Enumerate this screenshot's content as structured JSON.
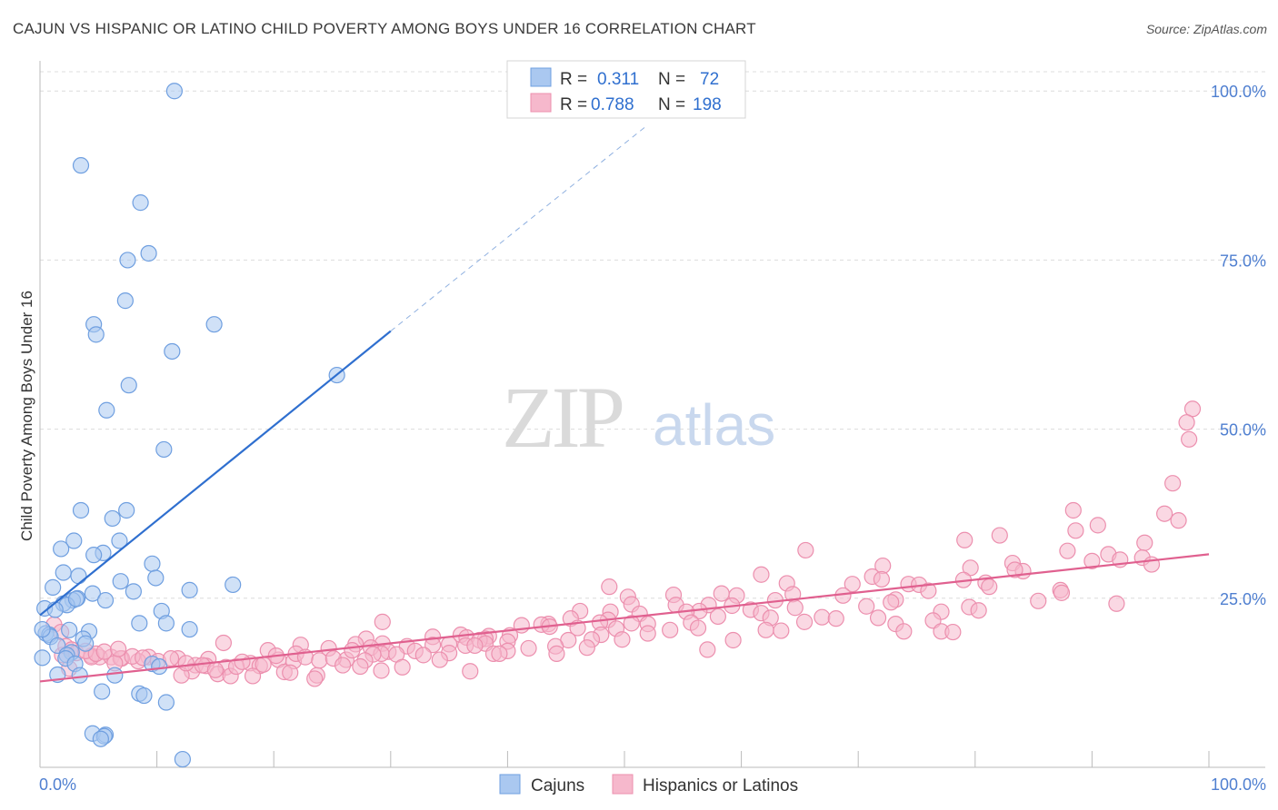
{
  "title": "CAJUN VS HISPANIC OR LATINO CHILD POVERTY AMONG BOYS UNDER 16 CORRELATION CHART",
  "source": "Source: ZipAtlas.com",
  "watermark": {
    "zip": "ZIP",
    "atlas": "atlas"
  },
  "chart_data": {
    "type": "scatter",
    "title": "CAJUN VS HISPANIC OR LATINO CHILD POVERTY AMONG BOYS UNDER 16 CORRELATION CHART",
    "xlabel": "",
    "ylabel": "Child Poverty Among Boys Under 16",
    "xlim": [
      0,
      100
    ],
    "ylim": [
      0,
      105
    ],
    "x_tick_labels": [
      "0.0%",
      "100.0%"
    ],
    "y_ticks": [
      25,
      50,
      75,
      100
    ],
    "y_tick_labels": [
      "25.0%",
      "50.0%",
      "75.0%",
      "100.0%"
    ],
    "grid": true,
    "legend_position": "top-center",
    "colors": {
      "cajun_fill": "#aac8f0",
      "cajun_stroke": "#6f9fe0",
      "cajun_line": "#2f6fcf",
      "hisp_fill": "#f6b8cc",
      "hisp_stroke": "#ec8fae",
      "hisp_line": "#e0608f"
    },
    "stats": [
      {
        "r_label": "R =",
        "r_value": "0.311",
        "n_label": "N =",
        "n_value": "72"
      },
      {
        "r_label": "R =",
        "r_value": "0.788",
        "n_label": "N =",
        "n_value": "198"
      }
    ],
    "series": [
      {
        "name": "Cajuns",
        "trend": {
          "x0": 0,
          "y0": 22.5,
          "x1": 30,
          "y1": 64.5,
          "dash_x_end": 52,
          "dash_y_end": 95
        },
        "points": [
          [
            11.5,
            100
          ],
          [
            3.5,
            89
          ],
          [
            8.6,
            83.5
          ],
          [
            9.3,
            76
          ],
          [
            7.5,
            75
          ],
          [
            7.3,
            69
          ],
          [
            4.6,
            65.5
          ],
          [
            14.9,
            65.5
          ],
          [
            4.8,
            64
          ],
          [
            11.3,
            61.5
          ],
          [
            25.4,
            58
          ],
          [
            7.6,
            56.5
          ],
          [
            5.7,
            52.8
          ],
          [
            10.6,
            47
          ],
          [
            3.5,
            38
          ],
          [
            7.4,
            38
          ],
          [
            6.2,
            36.8
          ],
          [
            6.8,
            33.5
          ],
          [
            2.9,
            33.5
          ],
          [
            1.8,
            32.3
          ],
          [
            5.4,
            31.7
          ],
          [
            4.6,
            31.4
          ],
          [
            9.6,
            30.1
          ],
          [
            2.0,
            28.8
          ],
          [
            3.3,
            28.3
          ],
          [
            9.9,
            28
          ],
          [
            6.9,
            27.5
          ],
          [
            16.5,
            27
          ],
          [
            1.1,
            26.6
          ],
          [
            8.0,
            26
          ],
          [
            12.8,
            26.2
          ],
          [
            4.5,
            25.7
          ],
          [
            3.2,
            25
          ],
          [
            2.8,
            24.7
          ],
          [
            5.6,
            24.7
          ],
          [
            2.0,
            24.2
          ],
          [
            2.3,
            24
          ],
          [
            10.4,
            23.1
          ],
          [
            0.4,
            23.5
          ],
          [
            1.3,
            23.3
          ],
          [
            8.5,
            21.3
          ],
          [
            10.8,
            21.3
          ],
          [
            12.8,
            20.4
          ],
          [
            2.5,
            20.3
          ],
          [
            4.2,
            20.1
          ],
          [
            0.5,
            19.8
          ],
          [
            0.8,
            19.6
          ],
          [
            0.9,
            19.3
          ],
          [
            3.7,
            19
          ],
          [
            3.9,
            18.3
          ],
          [
            1.5,
            18
          ],
          [
            2.7,
            17
          ],
          [
            2.3,
            16.6
          ],
          [
            0.2,
            16.2
          ],
          [
            2.2,
            16.1
          ],
          [
            3.0,
            15.3
          ],
          [
            9.6,
            15.3
          ],
          [
            10.2,
            14.9
          ],
          [
            1.5,
            13.7
          ],
          [
            3.4,
            13.6
          ],
          [
            6.4,
            13.6
          ],
          [
            5.3,
            11.2
          ],
          [
            8.5,
            10.9
          ],
          [
            8.9,
            10.6
          ],
          [
            10.8,
            9.6
          ],
          [
            4.5,
            5
          ],
          [
            5.6,
            4.8
          ],
          [
            5.5,
            4.6
          ],
          [
            5.2,
            4.2
          ],
          [
            12.2,
            1.2
          ],
          [
            0.2,
            20.4
          ],
          [
            3.1,
            24.9
          ]
        ]
      },
      {
        "name": "Hispanics or Latinos",
        "trend": {
          "x0": 0,
          "y0": 12.7,
          "x1": 100,
          "y1": 31.5
        },
        "points": [
          [
            98.6,
            53
          ],
          [
            98.1,
            51
          ],
          [
            98.3,
            48.5
          ],
          [
            96.9,
            42
          ],
          [
            88.4,
            38
          ],
          [
            96.2,
            37.5
          ],
          [
            97.4,
            36.5
          ],
          [
            90.5,
            35.8
          ],
          [
            88.6,
            35
          ],
          [
            82.1,
            34.3
          ],
          [
            79.1,
            33.6
          ],
          [
            94.5,
            33.2
          ],
          [
            87.9,
            32
          ],
          [
            65.5,
            32.1
          ],
          [
            91.4,
            31.5
          ],
          [
            94.3,
            31
          ],
          [
            92.4,
            30.7
          ],
          [
            90.0,
            30.5
          ],
          [
            83.2,
            30.2
          ],
          [
            95.1,
            30
          ],
          [
            72.1,
            29.8
          ],
          [
            79.6,
            29.5
          ],
          [
            84.1,
            29
          ],
          [
            83.4,
            29.2
          ],
          [
            61.7,
            28.5
          ],
          [
            71.2,
            28.2
          ],
          [
            79.0,
            27.7
          ],
          [
            80.9,
            27.3
          ],
          [
            74.3,
            27.1
          ],
          [
            75.2,
            27
          ],
          [
            72.0,
            27.8
          ],
          [
            63.9,
            27.2
          ],
          [
            69.5,
            27.1
          ],
          [
            81.2,
            26.7
          ],
          [
            48.7,
            26.7
          ],
          [
            87.3,
            26.2
          ],
          [
            76.0,
            26.1
          ],
          [
            87.4,
            25.8
          ],
          [
            64.4,
            25.6
          ],
          [
            58.3,
            25.7
          ],
          [
            54.2,
            25.5
          ],
          [
            68.7,
            25.4
          ],
          [
            59.6,
            25.4
          ],
          [
            50.3,
            25.2
          ],
          [
            73.2,
            24.8
          ],
          [
            62.9,
            24.7
          ],
          [
            85.4,
            24.6
          ],
          [
            72.8,
            24.4
          ],
          [
            92.1,
            24.2
          ],
          [
            50.6,
            24.1
          ],
          [
            57.2,
            24
          ],
          [
            54.4,
            24
          ],
          [
            59.2,
            23.9
          ],
          [
            79.5,
            23.7
          ],
          [
            70.7,
            23.8
          ],
          [
            64.6,
            23.6
          ],
          [
            60.8,
            23.3
          ],
          [
            80.3,
            23.2
          ],
          [
            56.4,
            23.1
          ],
          [
            55.3,
            23
          ],
          [
            77.1,
            23
          ],
          [
            46.2,
            23.1
          ],
          [
            61.7,
            22.8
          ],
          [
            48.8,
            23
          ],
          [
            51.3,
            22.7
          ],
          [
            58.0,
            22.3
          ],
          [
            66.9,
            22.2
          ],
          [
            62.5,
            22.1
          ],
          [
            71.7,
            22.1
          ],
          [
            68.1,
            22
          ],
          [
            45.4,
            22
          ],
          [
            48.6,
            21.8
          ],
          [
            76.4,
            21.7
          ],
          [
            65.4,
            21.5
          ],
          [
            73.2,
            21.2
          ],
          [
            55.7,
            21.4
          ],
          [
            47.9,
            21.4
          ],
          [
            50.6,
            21.3
          ],
          [
            52.0,
            21.2
          ],
          [
            43.5,
            21.2
          ],
          [
            42.9,
            21.1
          ],
          [
            41.2,
            21
          ],
          [
            29.3,
            21.5
          ],
          [
            43.6,
            20.8
          ],
          [
            46.0,
            20.6
          ],
          [
            56.3,
            20.6
          ],
          [
            49.3,
            20.5
          ],
          [
            53.9,
            20.3
          ],
          [
            62.1,
            20.3
          ],
          [
            63.4,
            20.2
          ],
          [
            73.9,
            20.1
          ],
          [
            77.1,
            20.1
          ],
          [
            78.1,
            20
          ],
          [
            52.0,
            19.8
          ],
          [
            48.0,
            19.6
          ],
          [
            36.0,
            19.6
          ],
          [
            40.2,
            19.5
          ],
          [
            38.4,
            19.4
          ],
          [
            33.6,
            19.3
          ],
          [
            36.5,
            19.2
          ],
          [
            27.9,
            19
          ],
          [
            38.1,
            19
          ],
          [
            47.2,
            18.9
          ],
          [
            49.8,
            18.9
          ],
          [
            59.3,
            18.8
          ],
          [
            37.6,
            18.8
          ],
          [
            45.2,
            18.8
          ],
          [
            40.0,
            18.6
          ],
          [
            29.3,
            18.3
          ],
          [
            38.1,
            18.3
          ],
          [
            35.0,
            18.2
          ],
          [
            15.7,
            18.4
          ],
          [
            27.0,
            18.2
          ],
          [
            22.3,
            18.1
          ],
          [
            33.6,
            18.1
          ],
          [
            36.4,
            18
          ],
          [
            37.2,
            18
          ],
          [
            44.1,
            17.9
          ],
          [
            31.4,
            17.9
          ],
          [
            28.3,
            17.7
          ],
          [
            41.8,
            17.6
          ],
          [
            24.7,
            17.6
          ],
          [
            57.1,
            17.4
          ],
          [
            19.5,
            17.3
          ],
          [
            40.0,
            17.2
          ],
          [
            29.8,
            17.1
          ],
          [
            32.1,
            17.2
          ],
          [
            29.2,
            16.8
          ],
          [
            35.0,
            16.9
          ],
          [
            38.8,
            16.8
          ],
          [
            39.3,
            16.8
          ],
          [
            28.5,
            16.7
          ],
          [
            32.8,
            16.6
          ],
          [
            1.9,
            16.6
          ],
          [
            4.4,
            16.5
          ],
          [
            5.1,
            16.3
          ],
          [
            4.4,
            16.3
          ],
          [
            6.1,
            16.3
          ],
          [
            9.3,
            16.3
          ],
          [
            7.0,
            16.1
          ],
          [
            11.8,
            16.1
          ],
          [
            6.9,
            16.1
          ],
          [
            14.4,
            16
          ],
          [
            20.4,
            15.9
          ],
          [
            26.2,
            15.9
          ],
          [
            27.8,
            15.8
          ],
          [
            21.7,
            15.7
          ],
          [
            8.4,
            15.7
          ],
          [
            18.0,
            15.4
          ],
          [
            6.4,
            15.4
          ],
          [
            13.3,
            15.1
          ],
          [
            18.8,
            15
          ],
          [
            14.2,
            15
          ],
          [
            27.4,
            14.9
          ],
          [
            15.9,
            14.8
          ],
          [
            2.5,
            14.6
          ],
          [
            29.2,
            14.3
          ],
          [
            36.8,
            14.2
          ],
          [
            13.0,
            14.2
          ],
          [
            20.9,
            14.1
          ],
          [
            21.4,
            14
          ],
          [
            15.2,
            13.8
          ],
          [
            23.7,
            13.6
          ],
          [
            12.1,
            13.6
          ],
          [
            16.3,
            13.5
          ],
          [
            18.2,
            13.5
          ],
          [
            23.5,
            13.1
          ],
          [
            1.2,
            21.1
          ],
          [
            1.8,
            20
          ],
          [
            2.2,
            17.9
          ],
          [
            2.7,
            17.4
          ],
          [
            3.1,
            16.9
          ],
          [
            3.9,
            17.2
          ],
          [
            4.8,
            16.8
          ],
          [
            5.5,
            17.1
          ],
          [
            6.7,
            17.5
          ],
          [
            7.9,
            16.4
          ],
          [
            8.8,
            16.2
          ],
          [
            10.1,
            15.7
          ],
          [
            11.2,
            16.1
          ],
          [
            12.5,
            15.4
          ],
          [
            13.9,
            15.1
          ],
          [
            15.0,
            14.4
          ],
          [
            16.8,
            14.9
          ],
          [
            17.3,
            15.6
          ],
          [
            19.1,
            15.2
          ],
          [
            20.2,
            16.5
          ],
          [
            21.9,
            16.8
          ],
          [
            22.7,
            16.3
          ],
          [
            23.9,
            15.8
          ],
          [
            25.1,
            16.1
          ],
          [
            25.9,
            15.1
          ],
          [
            26.7,
            17.3
          ],
          [
            30.5,
            16.7
          ],
          [
            31.0,
            14.8
          ],
          [
            34.2,
            15.9
          ],
          [
            44.2,
            16.8
          ],
          [
            46.8,
            17.7
          ]
        ]
      }
    ]
  },
  "legend": [
    {
      "label": "Cajuns"
    },
    {
      "label": "Hispanics or Latinos"
    }
  ]
}
